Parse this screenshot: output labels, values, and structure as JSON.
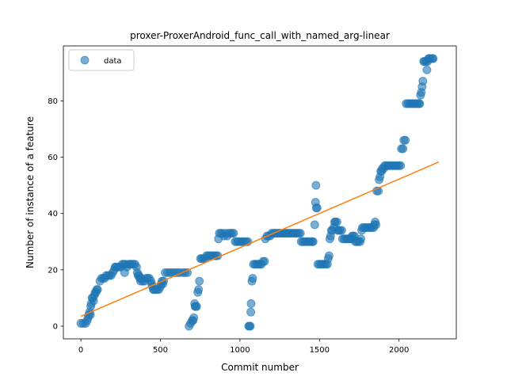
{
  "chart_data": {
    "type": "scatter",
    "title": "proxer-ProxerAndroid_func_call_with_named_arg-linear",
    "xlabel": "Commit number",
    "ylabel": "Number of instance of a feature",
    "xlim": [
      -110,
      2360
    ],
    "ylim": [
      -4.5,
      99.5
    ],
    "xticks": [
      0,
      500,
      1000,
      1500,
      2000
    ],
    "yticks": [
      0,
      20,
      40,
      60,
      80
    ],
    "legend": {
      "position": "top-left",
      "entries": [
        "data"
      ]
    },
    "grid": false,
    "colors": {
      "points": "#1f77b4",
      "fit": "#ff7f0e"
    },
    "series": [
      {
        "name": "data",
        "kind": "scatter",
        "points": [
          [
            0,
            1
          ],
          [
            15,
            1
          ],
          [
            30,
            1
          ],
          [
            40,
            2
          ],
          [
            45,
            3
          ],
          [
            50,
            4
          ],
          [
            55,
            5
          ],
          [
            60,
            4
          ],
          [
            62,
            7
          ],
          [
            65,
            8
          ],
          [
            70,
            10
          ],
          [
            75,
            10
          ],
          [
            80,
            9
          ],
          [
            85,
            11
          ],
          [
            90,
            12
          ],
          [
            95,
            12
          ],
          [
            100,
            13
          ],
          [
            105,
            13
          ],
          [
            120,
            16
          ],
          [
            130,
            17
          ],
          [
            140,
            17
          ],
          [
            150,
            17
          ],
          [
            160,
            18
          ],
          [
            170,
            18
          ],
          [
            180,
            18
          ],
          [
            190,
            18
          ],
          [
            200,
            19
          ],
          [
            210,
            20
          ],
          [
            215,
            21
          ],
          [
            220,
            21
          ],
          [
            230,
            21
          ],
          [
            240,
            21
          ],
          [
            250,
            21
          ],
          [
            260,
            22
          ],
          [
            270,
            22
          ],
          [
            275,
            19
          ],
          [
            280,
            22
          ],
          [
            290,
            21
          ],
          [
            300,
            22
          ],
          [
            310,
            22
          ],
          [
            320,
            22
          ],
          [
            330,
            22
          ],
          [
            340,
            22
          ],
          [
            350,
            21
          ],
          [
            355,
            19
          ],
          [
            360,
            18
          ],
          [
            365,
            18
          ],
          [
            370,
            17
          ],
          [
            375,
            16
          ],
          [
            380,
            17
          ],
          [
            390,
            16
          ],
          [
            400,
            16
          ],
          [
            410,
            17
          ],
          [
            420,
            17
          ],
          [
            430,
            17
          ],
          [
            440,
            16
          ],
          [
            445,
            15
          ],
          [
            450,
            14
          ],
          [
            455,
            13
          ],
          [
            460,
            13
          ],
          [
            470,
            13
          ],
          [
            480,
            13
          ],
          [
            490,
            13
          ],
          [
            500,
            14
          ],
          [
            505,
            15
          ],
          [
            510,
            16
          ],
          [
            515,
            15
          ],
          [
            520,
            16
          ],
          [
            530,
            19
          ],
          [
            545,
            19
          ],
          [
            560,
            19
          ],
          [
            575,
            19
          ],
          [
            590,
            19
          ],
          [
            605,
            19
          ],
          [
            620,
            19
          ],
          [
            640,
            19
          ],
          [
            655,
            19
          ],
          [
            670,
            19
          ],
          [
            680,
            0
          ],
          [
            690,
            1
          ],
          [
            700,
            2
          ],
          [
            705,
            2
          ],
          [
            710,
            3
          ],
          [
            715,
            8
          ],
          [
            718,
            7
          ],
          [
            722,
            7
          ],
          [
            728,
            7
          ],
          [
            735,
            12
          ],
          [
            740,
            13
          ],
          [
            745,
            16
          ],
          [
            752,
            24
          ],
          [
            760,
            24
          ],
          [
            770,
            24
          ],
          [
            780,
            24
          ],
          [
            790,
            25
          ],
          [
            800,
            25
          ],
          [
            810,
            25
          ],
          [
            820,
            25
          ],
          [
            830,
            25
          ],
          [
            840,
            25
          ],
          [
            850,
            25
          ],
          [
            860,
            25
          ],
          [
            865,
            31
          ],
          [
            870,
            33
          ],
          [
            880,
            33
          ],
          [
            890,
            33
          ],
          [
            900,
            32
          ],
          [
            910,
            33
          ],
          [
            920,
            32
          ],
          [
            930,
            33
          ],
          [
            940,
            33
          ],
          [
            950,
            33
          ],
          [
            960,
            33
          ],
          [
            970,
            30
          ],
          [
            980,
            30
          ],
          [
            990,
            30
          ],
          [
            1000,
            30
          ],
          [
            1010,
            30
          ],
          [
            1020,
            30
          ],
          [
            1030,
            30
          ],
          [
            1040,
            30
          ],
          [
            1050,
            30
          ],
          [
            1055,
            0
          ],
          [
            1060,
            0
          ],
          [
            1065,
            0
          ],
          [
            1068,
            5
          ],
          [
            1070,
            8
          ],
          [
            1075,
            16
          ],
          [
            1080,
            17
          ],
          [
            1085,
            22
          ],
          [
            1095,
            22
          ],
          [
            1105,
            22
          ],
          [
            1115,
            22
          ],
          [
            1125,
            22
          ],
          [
            1135,
            22
          ],
          [
            1145,
            23
          ],
          [
            1155,
            23
          ],
          [
            1160,
            31
          ],
          [
            1170,
            32
          ],
          [
            1180,
            32
          ],
          [
            1190,
            32
          ],
          [
            1200,
            33
          ],
          [
            1210,
            33
          ],
          [
            1220,
            33
          ],
          [
            1230,
            33
          ],
          [
            1240,
            33
          ],
          [
            1250,
            33
          ],
          [
            1260,
            33
          ],
          [
            1270,
            33
          ],
          [
            1280,
            33
          ],
          [
            1290,
            33
          ],
          [
            1300,
            33
          ],
          [
            1310,
            33
          ],
          [
            1320,
            33
          ],
          [
            1330,
            33
          ],
          [
            1340,
            33
          ],
          [
            1350,
            33
          ],
          [
            1360,
            33
          ],
          [
            1370,
            33
          ],
          [
            1380,
            33
          ],
          [
            1385,
            30
          ],
          [
            1395,
            30
          ],
          [
            1405,
            30
          ],
          [
            1415,
            30
          ],
          [
            1425,
            30
          ],
          [
            1435,
            30
          ],
          [
            1445,
            30
          ],
          [
            1455,
            30
          ],
          [
            1460,
            30
          ],
          [
            1470,
            36
          ],
          [
            1475,
            44
          ],
          [
            1478,
            50
          ],
          [
            1480,
            42
          ],
          [
            1485,
            42
          ],
          [
            1490,
            22
          ],
          [
            1500,
            22
          ],
          [
            1510,
            22
          ],
          [
            1520,
            22
          ],
          [
            1530,
            22
          ],
          [
            1540,
            22
          ],
          [
            1550,
            22
          ],
          [
            1555,
            24
          ],
          [
            1560,
            25
          ],
          [
            1565,
            31
          ],
          [
            1570,
            32
          ],
          [
            1575,
            34
          ],
          [
            1580,
            34
          ],
          [
            1590,
            35
          ],
          [
            1595,
            37
          ],
          [
            1600,
            37
          ],
          [
            1610,
            37
          ],
          [
            1615,
            34
          ],
          [
            1620,
            34
          ],
          [
            1630,
            34
          ],
          [
            1640,
            34
          ],
          [
            1645,
            31
          ],
          [
            1655,
            31
          ],
          [
            1665,
            31
          ],
          [
            1675,
            31
          ],
          [
            1685,
            31
          ],
          [
            1695,
            31
          ],
          [
            1700,
            31
          ],
          [
            1705,
            32
          ],
          [
            1710,
            32
          ],
          [
            1720,
            32
          ],
          [
            1725,
            30
          ],
          [
            1735,
            30
          ],
          [
            1745,
            30
          ],
          [
            1755,
            30
          ],
          [
            1760,
            31
          ],
          [
            1765,
            34
          ],
          [
            1770,
            35
          ],
          [
            1780,
            35
          ],
          [
            1790,
            35
          ],
          [
            1800,
            35
          ],
          [
            1810,
            35
          ],
          [
            1820,
            35
          ],
          [
            1830,
            35
          ],
          [
            1840,
            35
          ],
          [
            1845,
            36
          ],
          [
            1850,
            37
          ],
          [
            1855,
            36
          ],
          [
            1860,
            48
          ],
          [
            1870,
            48
          ],
          [
            1875,
            52
          ],
          [
            1880,
            53
          ],
          [
            1885,
            55
          ],
          [
            1890,
            55
          ],
          [
            1895,
            56
          ],
          [
            1905,
            56
          ],
          [
            1910,
            57
          ],
          [
            1920,
            57
          ],
          [
            1930,
            57
          ],
          [
            1940,
            57
          ],
          [
            1950,
            57
          ],
          [
            1960,
            57
          ],
          [
            1970,
            57
          ],
          [
            1980,
            57
          ],
          [
            1990,
            57
          ],
          [
            2000,
            57
          ],
          [
            2010,
            57
          ],
          [
            2015,
            63
          ],
          [
            2025,
            63
          ],
          [
            2030,
            66
          ],
          [
            2040,
            66
          ],
          [
            2045,
            79
          ],
          [
            2055,
            79
          ],
          [
            2065,
            79
          ],
          [
            2075,
            79
          ],
          [
            2085,
            79
          ],
          [
            2095,
            79
          ],
          [
            2105,
            79
          ],
          [
            2115,
            79
          ],
          [
            2125,
            79
          ],
          [
            2130,
            79
          ],
          [
            2135,
            82
          ],
          [
            2140,
            83
          ],
          [
            2145,
            85
          ],
          [
            2150,
            87
          ],
          [
            2155,
            94
          ],
          [
            2160,
            94
          ],
          [
            2170,
            94
          ],
          [
            2175,
            91
          ],
          [
            2180,
            94
          ],
          [
            2185,
            95
          ],
          [
            2190,
            95
          ],
          [
            2200,
            95
          ],
          [
            2210,
            95
          ],
          [
            2215,
            95
          ]
        ]
      },
      {
        "name": "",
        "kind": "line",
        "x": [
          0,
          2250
        ],
        "y": [
          3.5,
          58.3
        ]
      }
    ]
  }
}
